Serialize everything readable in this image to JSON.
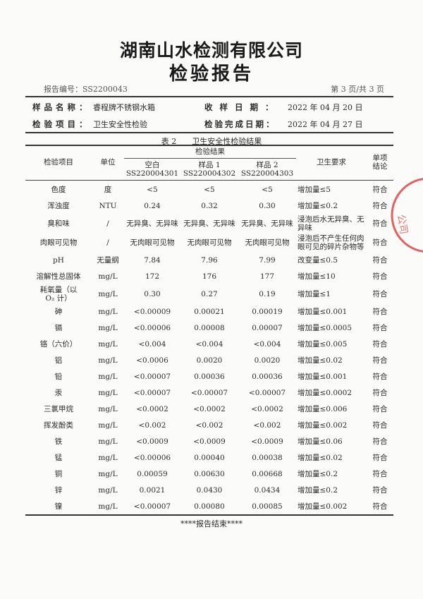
{
  "header": {
    "company": "湖南山水检测有限公司",
    "doc_title": "检验报告",
    "report_no_label": "报告编号：",
    "report_no": "SS2200043",
    "page": "第 3 页/共 3 页"
  },
  "info": {
    "sample_name_label": "样品名称：",
    "sample_name": "睿程牌不锈钢水箱",
    "receive_date_label": "收 样 日 期 ：",
    "receive_date": "2022 年 04 月 20 日",
    "test_item_label": "检验项目：",
    "test_item": "卫生安全性检验",
    "complete_date_label": "检验完成日期：",
    "complete_date": "2022 年 04 月 27 日"
  },
  "table": {
    "caption": "表 2　　卫生安全性检验结果",
    "headers": {
      "item": "检验项目",
      "unit": "单位",
      "results": "检验结果",
      "blank": "空白",
      "blank_id": "SS220004301",
      "s1": "样品 1",
      "s1_id": "SS220004302",
      "s2": "样品 2",
      "s2_id": "SS220004303",
      "requirement": "卫生要求",
      "conclusion": "单项结论"
    },
    "rows": [
      {
        "item": "色度",
        "unit": "度",
        "blank": "<5",
        "s1": "<5",
        "s2": "<5",
        "req": "增加量≤5",
        "result": "符合"
      },
      {
        "item": "浑浊度",
        "unit": "NTU",
        "blank": "0.24",
        "s1": "0.32",
        "s2": "0.30",
        "req": "增加量≤0.2",
        "result": "符合"
      },
      {
        "item": "臭和味",
        "unit": "/",
        "blank": "无异臭、无异味",
        "s1": "无异臭、无异味",
        "s2": "无异臭、无异味",
        "req": "浸泡后水无异臭、无异味",
        "result": "符合"
      },
      {
        "item": "肉眼可见物",
        "unit": "/",
        "blank": "无肉眼可见物",
        "s1": "无肉眼可见物",
        "s2": "无肉眼可见物",
        "req": "浸泡后不产生任何肉眼可见的碎片杂物等",
        "result": "符合"
      },
      {
        "item": "pH",
        "unit": "无量纲",
        "blank": "7.84",
        "s1": "7.96",
        "s2": "7.99",
        "req": "改变量≤0.5",
        "result": "符合"
      },
      {
        "item": "溶解性总固体",
        "unit": "mg/L",
        "blank": "172",
        "s1": "176",
        "s2": "177",
        "req": "增加量≤10",
        "result": "符合"
      },
      {
        "item": "耗氧量（以 O₂ 计）",
        "unit": "mg/L",
        "blank": "0.30",
        "s1": "0.27",
        "s2": "0.19",
        "req": "增加量≤1",
        "result": "符合"
      },
      {
        "item": "砷",
        "unit": "mg/L",
        "blank": "<0.00009",
        "s1": "0.00021",
        "s2": "0.00019",
        "req": "增加量≤0.001",
        "result": "符合"
      },
      {
        "item": "镉",
        "unit": "mg/L",
        "blank": "<0.00006",
        "s1": "0.00008",
        "s2": "0.00007",
        "req": "增加量≤0.0005",
        "result": "符合"
      },
      {
        "item": "铬（六价）",
        "unit": "mg/L",
        "blank": "<0.004",
        "s1": "<0.004",
        "s2": "<0.004",
        "req": "增加量≤0.005",
        "result": "符合"
      },
      {
        "item": "铝",
        "unit": "mg/L",
        "blank": "<0.0006",
        "s1": "0.0020",
        "s2": "0.0020",
        "req": "增加量≤0.02",
        "result": "符合"
      },
      {
        "item": "铅",
        "unit": "mg/L",
        "blank": "<0.00007",
        "s1": "0.00036",
        "s2": "0.00036",
        "req": "增加量≤0.001",
        "result": "符合"
      },
      {
        "item": "汞",
        "unit": "mg/L",
        "blank": "<0.00007",
        "s1": "<0.00007",
        "s2": "<0.00007",
        "req": "增加量≤0.0002",
        "result": "符合"
      },
      {
        "item": "三氯甲烷",
        "unit": "mg/L",
        "blank": "<0.0002",
        "s1": "<0.0002",
        "s2": "<0.0002",
        "req": "增加量≤0.006",
        "result": "符合"
      },
      {
        "item": "挥发酚类",
        "unit": "mg/L",
        "blank": "<0.002",
        "s1": "<0.002",
        "s2": "<0.002",
        "req": "增加量≤0.002",
        "result": "符合"
      },
      {
        "item": "铁",
        "unit": "mg/L",
        "blank": "<0.0009",
        "s1": "<0.0009",
        "s2": "<0.0009",
        "req": "增加量≤0.06",
        "result": "符合"
      },
      {
        "item": "锰",
        "unit": "mg/L",
        "blank": "<0.00006",
        "s1": "0.00040",
        "s2": "0.00038",
        "req": "增加量≤0.02",
        "result": "符合"
      },
      {
        "item": "铜",
        "unit": "mg/L",
        "blank": "0.00059",
        "s1": "0.00630",
        "s2": "0.00668",
        "req": "增加量≤0.2",
        "result": "符合"
      },
      {
        "item": "锌",
        "unit": "mg/L",
        "blank": "0.0021",
        "s1": "0.0430",
        "s2": "0.0434",
        "req": "增加量≤0.2",
        "result": "符合"
      },
      {
        "item": "镍",
        "unit": "mg/L",
        "blank": "<0.00007",
        "s1": "0.00080",
        "s2": "0.00085",
        "req": "增加量≤0.002",
        "result": "符合"
      }
    ]
  },
  "footer": {
    "end": "****报告结束****"
  },
  "stamp": {
    "text": "公司",
    "color": "#e03a3a"
  }
}
